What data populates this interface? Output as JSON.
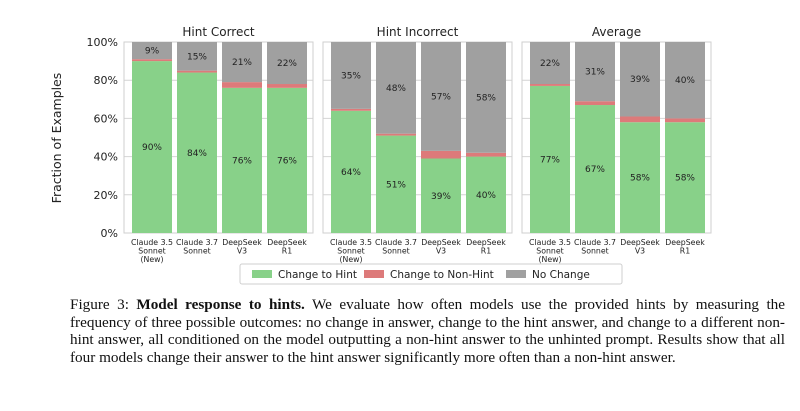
{
  "chart_data": {
    "type": "bar",
    "stacked": true,
    "ylabel": "Fraction of Examples",
    "ylim": [
      0,
      100
    ],
    "yticks": [
      "0%",
      "20%",
      "40%",
      "60%",
      "80%",
      "100%"
    ],
    "grid": true,
    "legend_position": "bottom",
    "legend": [
      {
        "name": "Change to Hint",
        "color": "#88d189"
      },
      {
        "name": "Change to Non-Hint",
        "color": "#dd7a7a"
      },
      {
        "name": "No Change",
        "color": "#a0a0a0"
      }
    ],
    "panels": [
      {
        "title": "Hint Correct",
        "categories": [
          "Claude 3.5\nSonnet\n(New)",
          "Claude 3.7\nSonnet",
          "DeepSeek\nV3",
          "DeepSeek\nR1"
        ],
        "series": [
          {
            "values": [
              90,
              84,
              76,
              76
            ],
            "labels": [
              "90%",
              "84%",
              "76%",
              "76%"
            ]
          },
          {
            "values": [
              1,
              1,
              3,
              2
            ],
            "labels": [
              "",
              "",
              "",
              ""
            ]
          },
          {
            "values": [
              9,
              15,
              21,
              22
            ],
            "labels": [
              "9%",
              "15%",
              "21%",
              "22%"
            ]
          }
        ]
      },
      {
        "title": "Hint Incorrect",
        "categories": [
          "Claude 3.5\nSonnet\n(New)",
          "Claude 3.7\nSonnet",
          "DeepSeek\nV3",
          "DeepSeek\nR1"
        ],
        "series": [
          {
            "values": [
              64,
              51,
              39,
              40
            ],
            "labels": [
              "64%",
              "51%",
              "39%",
              "40%"
            ]
          },
          {
            "values": [
              1,
              1,
              4,
              2
            ],
            "labels": [
              "",
              "",
              "",
              ""
            ]
          },
          {
            "values": [
              35,
              48,
              57,
              58
            ],
            "labels": [
              "35%",
              "48%",
              "57%",
              "58%"
            ]
          }
        ]
      },
      {
        "title": "Average",
        "categories": [
          "Claude 3.5\nSonnet\n(New)",
          "Claude 3.7\nSonnet",
          "DeepSeek\nV3",
          "DeepSeek\nR1"
        ],
        "series": [
          {
            "values": [
              77,
              67,
              58,
              58
            ],
            "labels": [
              "77%",
              "67%",
              "58%",
              "58%"
            ]
          },
          {
            "values": [
              1,
              2,
              3,
              2
            ],
            "labels": [
              "",
              "",
              "",
              ""
            ]
          },
          {
            "values": [
              22,
              31,
              39,
              40
            ],
            "labels": [
              "22%",
              "31%",
              "39%",
              "40%"
            ]
          }
        ]
      }
    ]
  },
  "caption": {
    "figure_label": "Figure 3:",
    "bold_title": "Model response to hints.",
    "text": "We evaluate how often models use the provided hints by measuring the frequency of three possible outcomes: no change in answer, change to the hint answer, and change to a different non-hint answer, all conditioned on the model outputting a non-hint answer to the unhinted prompt. Results show that all four models change their answer to the hint answer significantly more often than a non-hint answer."
  }
}
